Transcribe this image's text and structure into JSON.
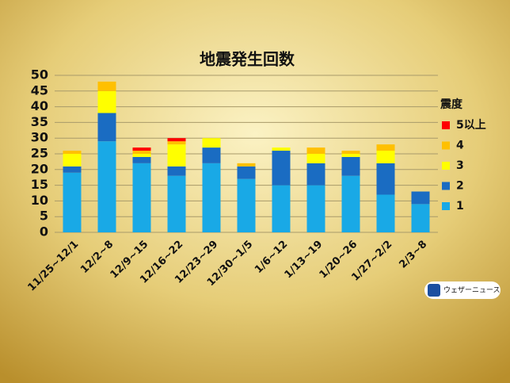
{
  "chart_data": {
    "type": "stacked-bar",
    "title": "地震発生回数",
    "categories": [
      "11/25~12/1",
      "12/2~8",
      "12/9~15",
      "12/16~22",
      "12/23~29",
      "12/30~1/5",
      "1/6~12",
      "1/13~19",
      "1/20~26",
      "1/27~2/2",
      "2/3~8"
    ],
    "series": [
      {
        "name": "1",
        "color": "#19a9e6",
        "values": [
          19,
          29,
          22,
          18,
          22,
          17,
          15,
          15,
          18,
          12,
          9
        ]
      },
      {
        "name": "2",
        "color": "#1a6cc2",
        "values": [
          2,
          9,
          2,
          3,
          5,
          4,
          11,
          7,
          6,
          10,
          4
        ]
      },
      {
        "name": "3",
        "color": "#ffff00",
        "values": [
          4,
          7,
          1,
          7,
          3,
          0,
          1,
          3,
          1,
          4,
          0
        ]
      },
      {
        "name": "4",
        "color": "#ffc000",
        "values": [
          1,
          3,
          1,
          1,
          0,
          1,
          0,
          2,
          1,
          2,
          0
        ]
      },
      {
        "name": "5以上",
        "color": "#ff0000",
        "values": [
          0,
          0,
          1,
          1,
          0,
          0,
          0,
          0,
          0,
          0,
          0
        ]
      }
    ],
    "legend_title": "震度",
    "ylim": [
      0,
      50
    ],
    "yticks": [
      0,
      5,
      10,
      15,
      20,
      25,
      30,
      35,
      40,
      45,
      50
    ],
    "grid": true,
    "brand": "ウェザーニュース"
  }
}
